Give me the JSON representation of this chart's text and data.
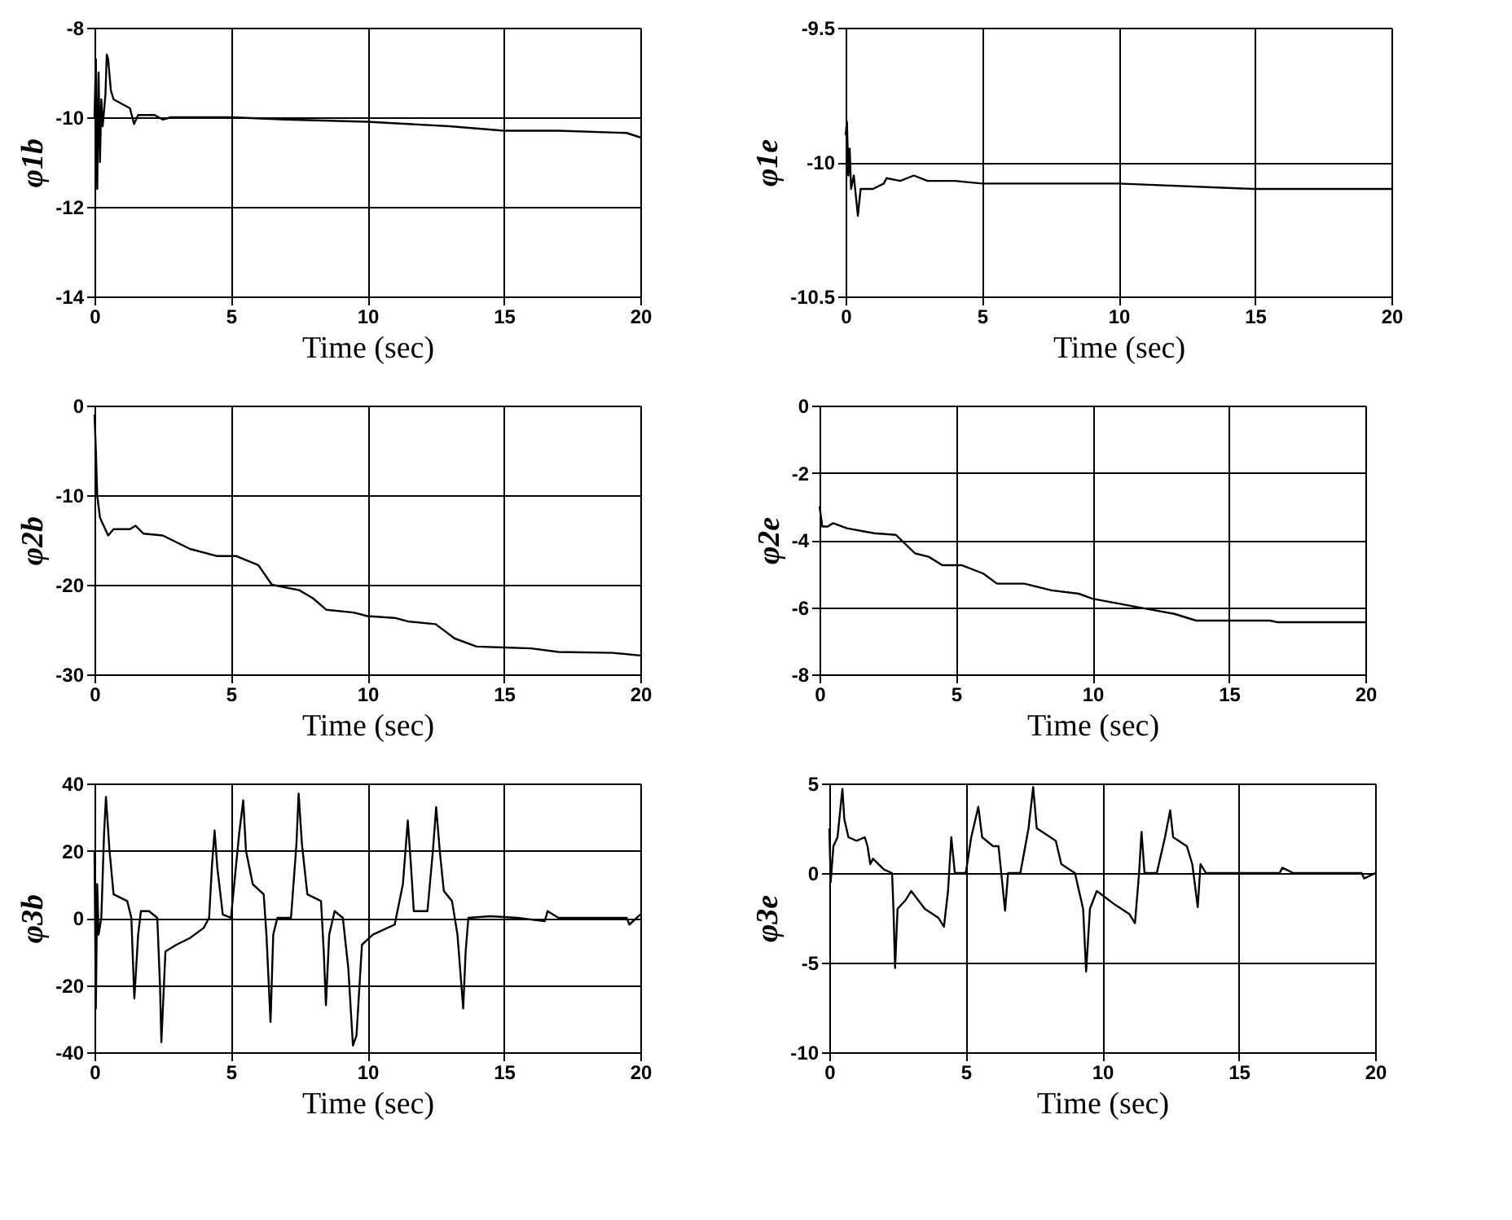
{
  "chart_data": [
    {
      "type": "line",
      "xlabel": "Time (sec)",
      "ylabel": "φ1b",
      "xlim": [
        0,
        20
      ],
      "xticks": [
        0,
        5,
        10,
        15,
        20
      ],
      "ylim": [
        -14,
        -8
      ],
      "yticks": [
        -14,
        -12,
        -10,
        -8
      ],
      "grid": true,
      "series": [
        {
          "color": "#000000",
          "x": [
            0,
            0.05,
            0.1,
            0.15,
            0.2,
            0.25,
            0.3,
            0.4,
            0.45,
            0.5,
            0.6,
            0.7,
            1.0,
            1.3,
            1.45,
            1.6,
            1.7,
            2.2,
            2.5,
            2.8,
            5,
            7,
            10,
            13,
            15,
            17,
            19.5,
            20
          ],
          "values": [
            -10,
            -8.7,
            -11.6,
            -9,
            -11,
            -9.6,
            -10.2,
            -9.5,
            -8.6,
            -8.7,
            -9.4,
            -9.6,
            -9.7,
            -9.8,
            -10.15,
            -9.95,
            -9.95,
            -9.95,
            -10.05,
            -10,
            -10,
            -10.05,
            -10.1,
            -10.2,
            -10.3,
            -10.3,
            -10.35,
            -10.45
          ]
        }
      ]
    },
    {
      "type": "line",
      "xlabel": "Time (sec)",
      "ylabel": "φ1e",
      "xlim": [
        0,
        20
      ],
      "xticks": [
        0,
        5,
        10,
        15,
        20
      ],
      "ylim": [
        -10.5,
        -9.5
      ],
      "yticks": [
        -10.5,
        -10,
        -9.5
      ],
      "grid": true,
      "series": [
        {
          "color": "#000000",
          "x": [
            0,
            0.05,
            0.1,
            0.15,
            0.2,
            0.3,
            0.45,
            0.55,
            1.0,
            1.4,
            1.5,
            2.0,
            2.5,
            3,
            4,
            5,
            10,
            15,
            20
          ],
          "values": [
            -9.9,
            -9.85,
            -10.05,
            -9.95,
            -10.1,
            -10.05,
            -10.2,
            -10.1,
            -10.1,
            -10.08,
            -10.06,
            -10.07,
            -10.05,
            -10.07,
            -10.07,
            -10.08,
            -10.08,
            -10.1,
            -10.1
          ]
        }
      ]
    },
    {
      "type": "line",
      "xlabel": "Time (sec)",
      "ylabel": "φ2b",
      "xlim": [
        0,
        20
      ],
      "xticks": [
        0,
        5,
        10,
        15,
        20
      ],
      "ylim": [
        -30,
        0
      ],
      "yticks": [
        -30,
        -20,
        -10,
        0
      ],
      "grid": true,
      "series": [
        {
          "color": "#000000",
          "x": [
            0,
            0.05,
            0.1,
            0.2,
            0.5,
            0.7,
            1.3,
            1.5,
            1.8,
            2.5,
            3.5,
            4.5,
            5.2,
            6,
            6.5,
            7.5,
            8,
            8.5,
            9.5,
            10,
            11,
            11.5,
            12.5,
            13.2,
            14,
            15,
            16,
            17,
            19,
            20
          ],
          "values": [
            -1,
            -5,
            -10,
            -12.5,
            -14.5,
            -13.8,
            -13.8,
            -13.4,
            -14.3,
            -14.5,
            -16,
            -16.8,
            -16.8,
            -17.8,
            -20,
            -20.6,
            -21.5,
            -22.8,
            -23.1,
            -23.5,
            -23.7,
            -24.1,
            -24.4,
            -26,
            -26.9,
            -27,
            -27.1,
            -27.5,
            -27.6,
            -27.9
          ]
        }
      ]
    },
    {
      "type": "line",
      "xlabel": "Time (sec)",
      "ylabel": "φ2e",
      "xlim": [
        0,
        20
      ],
      "xticks": [
        0,
        5,
        10,
        15,
        20
      ],
      "ylim": [
        -8,
        0
      ],
      "yticks": [
        -8,
        -6,
        -4,
        -2,
        0
      ],
      "grid": true,
      "series": [
        {
          "color": "#000000",
          "x": [
            0,
            0.1,
            0.3,
            0.5,
            1,
            2,
            2.8,
            3.5,
            4,
            4.5,
            5.2,
            6,
            6.5,
            7.5,
            8.5,
            9.5,
            10,
            11,
            12,
            13,
            13.8,
            16.5,
            16.8,
            20
          ],
          "values": [
            -3,
            -3.6,
            -3.6,
            -3.5,
            -3.65,
            -3.8,
            -3.85,
            -4.4,
            -4.5,
            -4.75,
            -4.75,
            -5,
            -5.3,
            -5.3,
            -5.5,
            -5.6,
            -5.75,
            -5.9,
            -6.05,
            -6.2,
            -6.4,
            -6.4,
            -6.45,
            -6.45
          ]
        }
      ]
    },
    {
      "type": "line",
      "xlabel": "Time (sec)",
      "ylabel": "φ3b",
      "xlim": [
        0,
        20
      ],
      "xticks": [
        0,
        5,
        10,
        15,
        20
      ],
      "ylim": [
        -40,
        40
      ],
      "yticks": [
        -40,
        -20,
        0,
        20,
        40
      ],
      "grid": true,
      "series": [
        {
          "color": "#000000",
          "x": [
            0,
            0.05,
            0.1,
            0.15,
            0.25,
            0.35,
            0.42,
            0.55,
            0.7,
            1.2,
            1.35,
            1.46,
            1.6,
            1.7,
            2,
            2.3,
            2.4,
            2.45,
            2.6,
            3,
            3.5,
            4,
            4.2,
            4.3,
            4.4,
            4.5,
            4.7,
            5,
            5.3,
            5.45,
            5.55,
            5.8,
            6.2,
            6.3,
            6.45,
            6.55,
            6.7,
            7.2,
            7.4,
            7.48,
            7.6,
            7.8,
            8.3,
            8.4,
            8.48,
            8.6,
            8.8,
            9.1,
            9.3,
            9.47,
            9.6,
            9.8,
            10.2,
            11,
            11.3,
            11.48,
            11.6,
            11.7,
            12.2,
            12.4,
            12.52,
            12.65,
            12.8,
            13.1,
            13.3,
            13.51,
            13.6,
            13.7,
            14.5,
            15.5,
            16.5,
            16.6,
            17,
            19.5,
            19.6,
            20
          ],
          "values": [
            20,
            -27,
            10,
            -5,
            0,
            25,
            36,
            20,
            7,
            5,
            0,
            -24,
            -5,
            2,
            2,
            0,
            -20,
            -37,
            -10,
            -8,
            -6,
            -3,
            0,
            15,
            26,
            15,
            1,
            0,
            25,
            35,
            20,
            10,
            7,
            -5,
            -31,
            -5,
            0,
            0,
            22,
            37,
            22,
            7,
            5,
            -10,
            -26,
            -5,
            2,
            0,
            -15,
            -38,
            -35,
            -8,
            -5,
            -2,
            10,
            29,
            15,
            2,
            2,
            20,
            33,
            20,
            8,
            5,
            -5,
            -27,
            -10,
            0,
            0.5,
            0,
            -1,
            2,
            0,
            0,
            -2,
            1
          ]
        }
      ]
    },
    {
      "type": "line",
      "xlabel": "Time (sec)",
      "ylabel": "φ3e",
      "xlim": [
        0,
        20
      ],
      "xticks": [
        0,
        5,
        10,
        15,
        20
      ],
      "ylim": [
        -10,
        5
      ],
      "yticks": [
        -10,
        -5,
        0,
        5
      ],
      "grid": true,
      "series": [
        {
          "color": "#000000",
          "x": [
            0,
            0.05,
            0.15,
            0.3,
            0.4,
            0.48,
            0.55,
            0.7,
            1,
            1.3,
            1.4,
            1.5,
            1.6,
            2,
            2.3,
            2.35,
            2.41,
            2.5,
            2.8,
            3,
            3.5,
            4,
            4.2,
            4.35,
            4.47,
            4.6,
            5,
            5.2,
            5.46,
            5.6,
            6,
            6.2,
            6.3,
            6.44,
            6.55,
            7,
            7.3,
            7.47,
            7.6,
            8,
            8.3,
            8.5,
            9,
            9.3,
            9.41,
            9.55,
            9.8,
            10.5,
            11,
            11.2,
            11.35,
            11.44,
            11.55,
            12,
            12.3,
            12.49,
            12.6,
            13.1,
            13.3,
            13.5,
            13.6,
            13.8,
            15,
            16.5,
            16.6,
            17,
            19.5,
            19.6,
            20
          ],
          "values": [
            2.5,
            -0.5,
            1.5,
            2,
            3.5,
            4.7,
            3,
            2,
            1.8,
            2,
            1.5,
            0.5,
            0.8,
            0.2,
            0,
            -2,
            -5.3,
            -2,
            -1.5,
            -1,
            -2,
            -2.5,
            -3,
            -1,
            2,
            0,
            0,
            2,
            3.7,
            2,
            1.5,
            1.5,
            0,
            -2.1,
            0,
            0,
            2.5,
            4.8,
            2.5,
            2.1,
            1.8,
            0.5,
            0,
            -2,
            -5.5,
            -2,
            -1,
            -1.8,
            -2.3,
            -2.8,
            0,
            2.3,
            0,
            0,
            2,
            3.5,
            2,
            1.5,
            0.5,
            -1.9,
            0.5,
            0,
            0,
            0,
            0.3,
            0,
            0,
            -0.3,
            0
          ]
        }
      ]
    }
  ]
}
